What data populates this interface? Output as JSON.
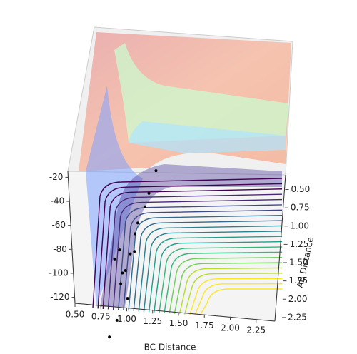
{
  "chart_data": {
    "type": "surface3d",
    "xlabel": "BC Distance",
    "ylabel": "AB Distance",
    "xlim": [
      0.5,
      2.5
    ],
    "ylim": [
      0.3,
      2.3
    ],
    "zlim": [
      -125,
      -15
    ],
    "xticks": [
      {
        "value": 0.5,
        "label": "0.50"
      },
      {
        "value": 0.75,
        "label": "0.75"
      },
      {
        "value": 1.0,
        "label": "1.00"
      },
      {
        "value": 1.25,
        "label": "1.25"
      },
      {
        "value": 1.5,
        "label": "1.50"
      },
      {
        "value": 1.75,
        "label": "1.75"
      },
      {
        "value": 2.0,
        "label": "2.00"
      },
      {
        "value": 2.25,
        "label": "2.25"
      }
    ],
    "yticks": [
      {
        "value": 0.5,
        "label": "0.50"
      },
      {
        "value": 0.75,
        "label": "0.75"
      },
      {
        "value": 1.0,
        "label": "1.00"
      },
      {
        "value": 1.25,
        "label": "1.25"
      },
      {
        "value": 1.5,
        "label": "1.50"
      },
      {
        "value": 1.75,
        "label": "1.75"
      },
      {
        "value": 2.0,
        "label": "2.00"
      },
      {
        "value": 2.25,
        "label": "2.25"
      }
    ],
    "zticks": [
      -20,
      -40,
      -60,
      -80,
      -100,
      -120
    ],
    "trajectory": {
      "color": "#000000",
      "x": [
        0.82,
        0.9,
        1.01,
        0.97,
        0.9,
        0.95,
        1.09,
        1.13,
        1.2,
        1.24,
        1.31,
        1.1,
        1.05,
        1.0,
        0.95
      ],
      "y": [
        2.76,
        2.5,
        2.16,
        1.79,
        1.59,
        1.45,
        1.46,
        1.04,
        0.8,
        0.6,
        0.27,
        1.2,
        1.5,
        1.75,
        1.95
      ]
    }
  }
}
